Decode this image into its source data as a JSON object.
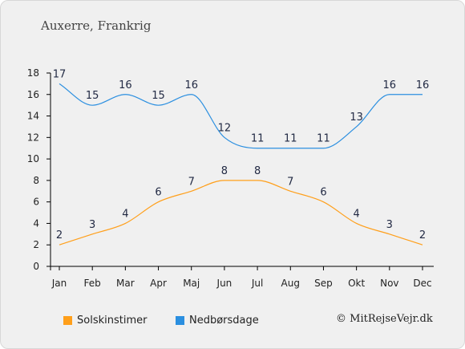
{
  "header": {
    "title": "Auxerre, Frankrig"
  },
  "legend": {
    "items": [
      "Solskinstimer",
      "Nedbørsdage"
    ]
  },
  "credit": "© MitRejseVejr.dk",
  "chart_data": {
    "type": "line",
    "categories": [
      "Jan",
      "Feb",
      "Mar",
      "Apr",
      "Maj",
      "Jun",
      "Jul",
      "Aug",
      "Sep",
      "Okt",
      "Nov",
      "Dec"
    ],
    "yticks": [
      0,
      2,
      4,
      6,
      8,
      10,
      12,
      14,
      16,
      18
    ],
    "ylim": [
      0,
      18
    ],
    "grid": false,
    "legend_position": "bottom-left",
    "series": [
      {
        "name": "Solskinstimer",
        "color": "#ff9f1a",
        "values": [
          2,
          3,
          4,
          6,
          7,
          8,
          8,
          7,
          6,
          4,
          3,
          2
        ]
      },
      {
        "name": "Nedbørsdage",
        "color": "#2b8fe0",
        "values": [
          17,
          15,
          16,
          15,
          16,
          12,
          11,
          11,
          11,
          13,
          16,
          16
        ]
      }
    ]
  }
}
